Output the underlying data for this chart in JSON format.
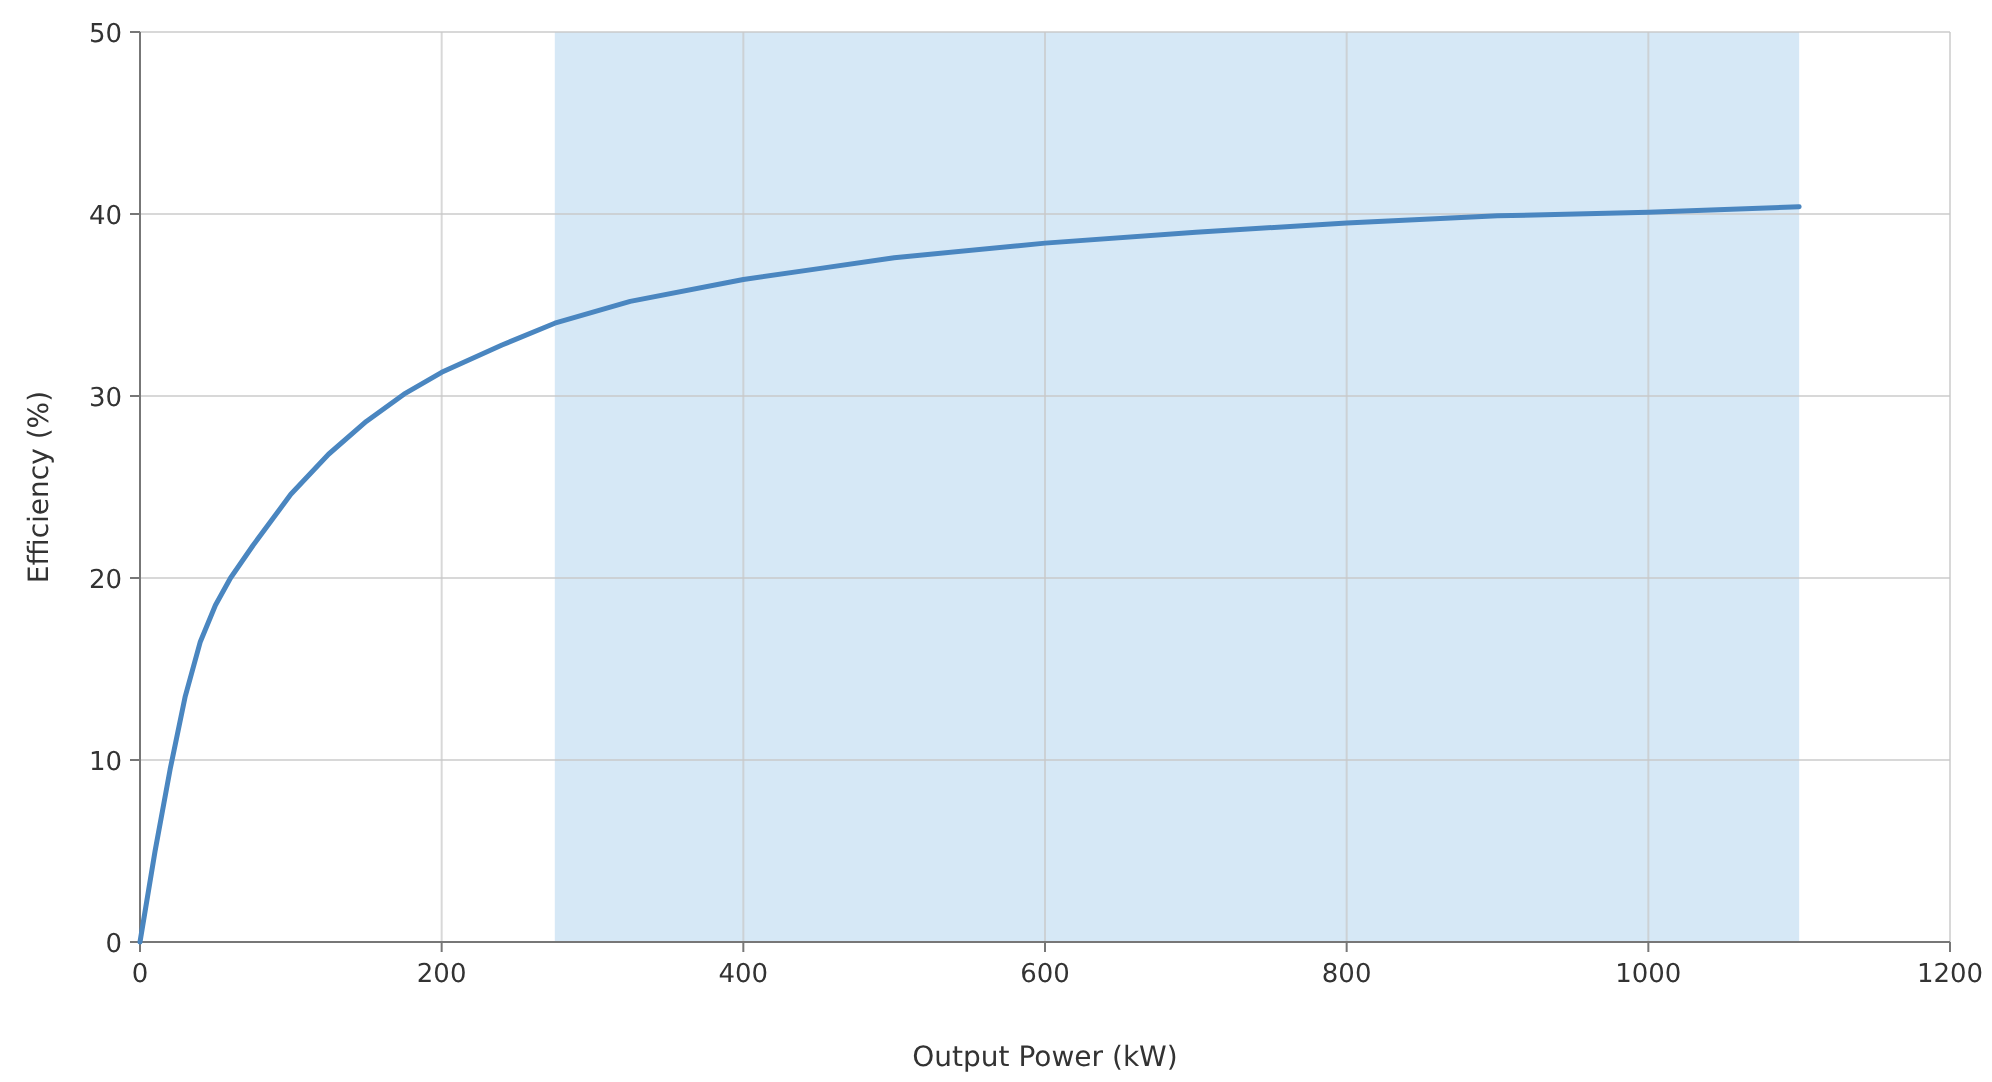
{
  "chart_data": {
    "type": "line",
    "xlabel": "Output Power (kW)",
    "ylabel": "Efficiency (%)",
    "x": [
      0,
      10,
      20,
      30,
      40,
      50,
      60,
      75,
      100,
      125,
      150,
      175,
      200,
      240,
      275,
      325,
      400,
      450,
      500,
      600,
      700,
      800,
      900,
      1000,
      1100
    ],
    "series": [
      {
        "color": "#4a86c0",
        "values": [
          0,
          5,
          9.5,
          13.5,
          16.5,
          18.5,
          20,
          21.8,
          24.6,
          26.8,
          28.6,
          30.1,
          31.3,
          32.8,
          34,
          35.2,
          36.4,
          37,
          37.6,
          38.4,
          39,
          39.5,
          39.9,
          40.1,
          40.4
        ]
      }
    ],
    "xlim": [
      0,
      1200
    ],
    "xticks": [
      0,
      200,
      400,
      600,
      800,
      1000,
      1200
    ],
    "ylim": [
      0,
      50
    ],
    "yticks": [
      0,
      10,
      20,
      30,
      40,
      50
    ],
    "bands": [
      {
        "axis": "x",
        "from": 275,
        "to": 1100,
        "color": "#d6e8f6"
      }
    ],
    "grid": true,
    "marker": "none",
    "line_style": "solid"
  }
}
